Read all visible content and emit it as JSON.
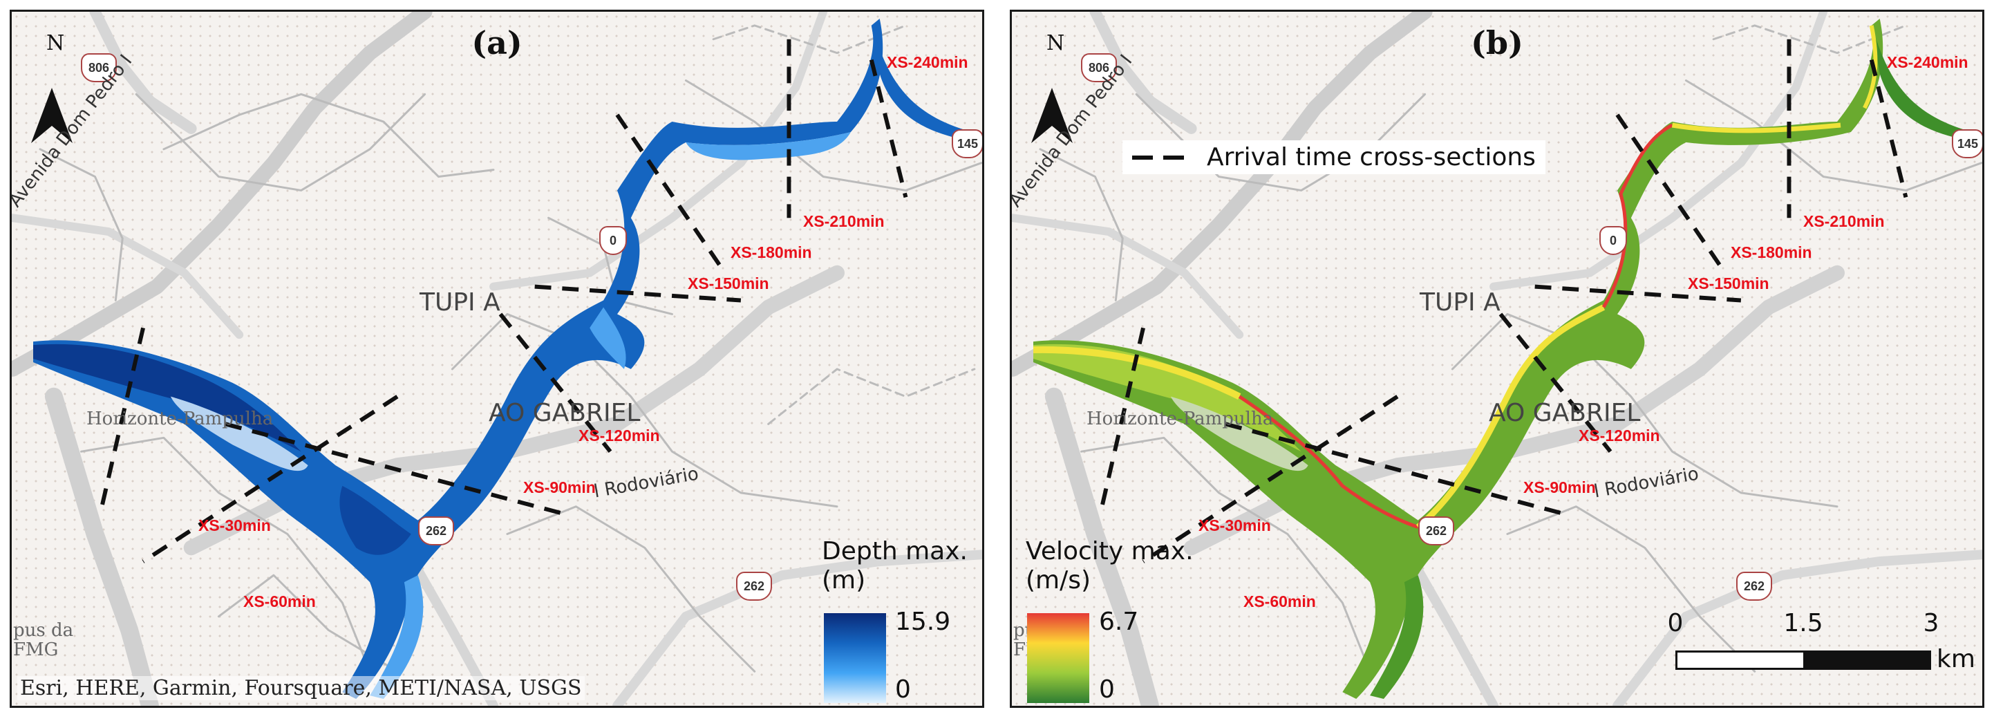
{
  "panels": [
    {
      "id": "a",
      "title": "(a)",
      "north": "N",
      "attribution": "Esri, HERE, Garmin, Foursquare, METI/NASA, USGS",
      "legend": {
        "title": "Depth max.",
        "unit": "(m)",
        "max": "15.9",
        "min": "0",
        "ramp": [
          "#0a2a78",
          "#1565c0",
          "#42a5f5",
          "#e3f2fd"
        ]
      },
      "flood_colors": {
        "deep": "#0b3a8f",
        "mid": "#1565c0",
        "shallow": "#4da3ef",
        "edge": "#9ccaf5"
      }
    },
    {
      "id": "b",
      "title": "(b)",
      "north": "N",
      "legend": {
        "title": "Velocity max.",
        "unit": "(m/s)",
        "max": "6.7",
        "min": "0",
        "ramp": [
          "#e53935",
          "#fdd835",
          "#9ccc3c",
          "#2e7d32"
        ]
      },
      "flood_colors": {
        "deep": "#3f8f2a",
        "mid": "#8cc63f",
        "shallow": "#e5e03a",
        "edge": "#e53935"
      },
      "arrival_legend": "Arrival time cross-sections",
      "scalebar": {
        "ticks": [
          "0",
          "1.5",
          "3"
        ],
        "unit": "km"
      }
    }
  ],
  "cross_sections": [
    "XS-30min",
    "XS-60min",
    "XS-90min",
    "XS-120min",
    "XS-150min",
    "XS-180min",
    "XS-210min",
    "XS-240min"
  ],
  "places": {
    "tupi": "TUPI A",
    "gabriel": "AO GABRIEL",
    "horizonte": "Horizonte-Pampulha",
    "campus_line1": "pus da",
    "campus_line2": "FMG",
    "rodoviario": "l Rodoviário",
    "avenida": "Avenida Dom Pedro I"
  },
  "shields": {
    "s806": "806",
    "s145": "145",
    "s262": "262",
    "s262b": "262",
    "s0": "0"
  },
  "colors": {
    "cross_section_label": "#e8111b",
    "road": "#cfcfcf",
    "road_minor": "#dcdcdc"
  }
}
